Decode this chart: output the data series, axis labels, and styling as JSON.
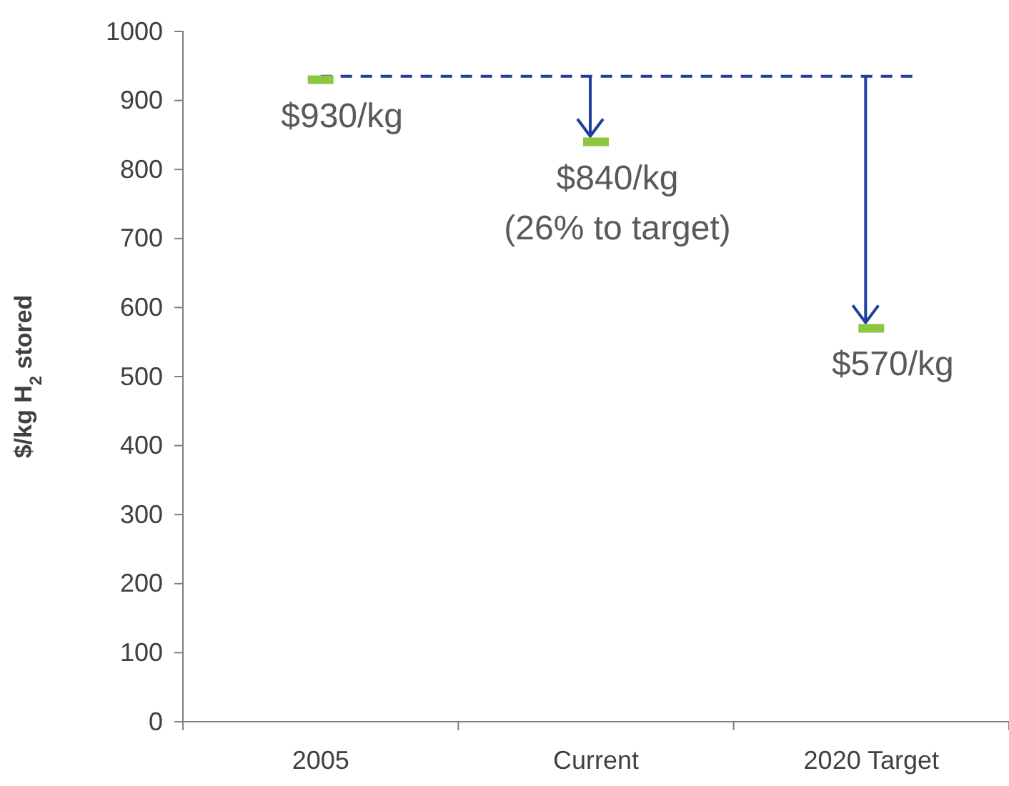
{
  "chart_data": {
    "type": "scatter",
    "categories": [
      "2005",
      "Current",
      "2020 Target"
    ],
    "series": [
      {
        "color": "#8dc63f",
        "values": [
          930,
          840,
          570
        ],
        "value_labels": [
          "$930/kg",
          "$840/kg",
          "$570/kg"
        ]
      }
    ],
    "ylabel": "$/kg H$_{2}$ stored",
    "ylim": [
      0,
      1000
    ],
    "yticks": [
      0,
      100,
      200,
      300,
      400,
      500,
      600,
      700,
      800,
      900,
      1000
    ],
    "grid": false,
    "ref_lines": [
      {
        "axis": "y",
        "value": 935,
        "color": "#1f3f99",
        "line_style": "dashed"
      }
    ],
    "annotations": [
      {
        "text": "(26% to target)",
        "x": "Current",
        "y": 840
      }
    ]
  }
}
